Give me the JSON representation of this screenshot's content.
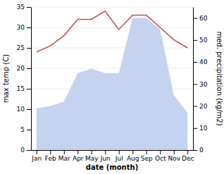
{
  "chart_data": {
    "type": "line",
    "xlabel": "date (month)",
    "ylabel": "max temp (C)",
    "y2label": "med. precipitation (kg/m2)",
    "categories": [
      "Jan",
      "Feb",
      "Mar",
      "Apr",
      "May",
      "Jun",
      "Jul",
      "Aug",
      "Sep",
      "Oct",
      "Nov",
      "Dec"
    ],
    "series": [
      {
        "type": "area",
        "axis": "y2",
        "color": "#c5d3f0",
        "values": [
          19,
          20,
          22,
          35,
          37,
          35,
          35,
          60,
          60,
          55,
          25,
          17
        ]
      },
      {
        "type": "line",
        "color": "#c0504d",
        "values": [
          24,
          25.5,
          28,
          32,
          32,
          34,
          29.5,
          33,
          33,
          30,
          27,
          25
        ]
      }
    ],
    "ylim": [
      0,
      35
    ],
    "yticks": [
      0,
      5,
      10,
      15,
      20,
      25,
      30,
      35
    ],
    "y2lim": [
      0,
      65
    ],
    "y2ticks": [
      0,
      10,
      20,
      30,
      40,
      50,
      60
    ],
    "grid": true
  }
}
